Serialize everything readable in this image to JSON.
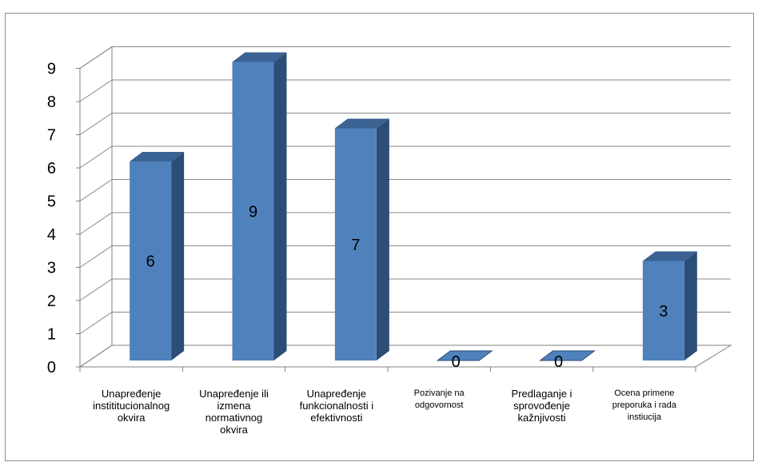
{
  "chart_data": {
    "type": "bar",
    "title": "",
    "xlabel": "",
    "ylabel": "",
    "ylim": [
      0,
      9
    ],
    "yticks": [
      "0",
      "1",
      "2",
      "3",
      "4",
      "5",
      "6",
      "7",
      "8",
      "9"
    ],
    "grid": true,
    "style": "3d-column",
    "categories": [
      "Unapređenje\ninstititucionalnog\nokvira",
      "Unapređenje ili\nizmena\nnormativnog\nokvira",
      "Unapređenje\nfunkcionalnosti i\nefektivnosti",
      "Pozivanje na\nodgovornost",
      "Predlaganje i\nsprovođenje\nkažnjivosti",
      "Ocena primene\npreporuka i rada\ninstiucija"
    ],
    "values": [
      6,
      9,
      7,
      0,
      0,
      3
    ],
    "data_labels": [
      "6",
      "9",
      "7",
      "0",
      "0",
      "3"
    ],
    "colors": {
      "front": "#4f81bd",
      "side": "#2c4d75",
      "top": "#3a6293",
      "grid": "#8a8a8a",
      "axis": "#808080"
    }
  }
}
